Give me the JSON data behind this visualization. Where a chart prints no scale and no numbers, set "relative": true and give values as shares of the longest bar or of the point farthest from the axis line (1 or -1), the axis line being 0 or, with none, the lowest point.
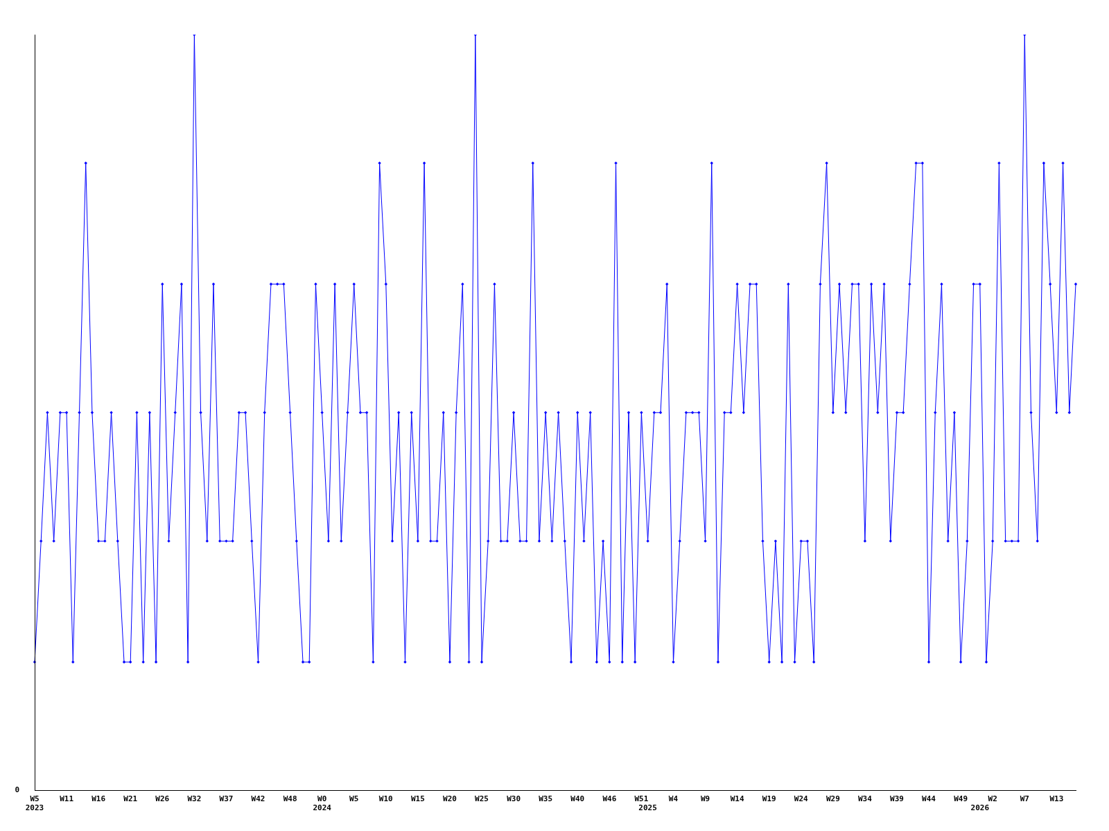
{
  "chart_data": {
    "type": "line",
    "relative": true,
    "categories": [
      "W5\n2023",
      null,
      null,
      null,
      null,
      "W11",
      null,
      null,
      null,
      null,
      "W16",
      null,
      null,
      null,
      null,
      "W21",
      null,
      null,
      null,
      null,
      "W26",
      null,
      null,
      null,
      null,
      "W32",
      null,
      null,
      null,
      null,
      "W37",
      null,
      null,
      null,
      null,
      "W42",
      null,
      null,
      null,
      null,
      "W48",
      null,
      null,
      null,
      null,
      "W0\n2024",
      null,
      null,
      null,
      null,
      "W5",
      null,
      null,
      null,
      null,
      "W10",
      null,
      null,
      null,
      null,
      "W15",
      null,
      null,
      null,
      null,
      "W20",
      null,
      null,
      null,
      null,
      "W25",
      null,
      null,
      null,
      null,
      "W30",
      null,
      null,
      null,
      null,
      "W35",
      null,
      null,
      null,
      null,
      "W40",
      null,
      null,
      null,
      null,
      "W46",
      null,
      null,
      null,
      null,
      "W51",
      "\n2025",
      null,
      null,
      null,
      "W4",
      null,
      null,
      null,
      null,
      "W9",
      null,
      null,
      null,
      null,
      "W14",
      null,
      null,
      null,
      null,
      "W19",
      null,
      null,
      null,
      null,
      "W24",
      null,
      null,
      null,
      null,
      "W29",
      null,
      null,
      null,
      null,
      "W34",
      null,
      null,
      null,
      null,
      "W39",
      null,
      null,
      null,
      null,
      "W44",
      null,
      null,
      null,
      null,
      "W49",
      null,
      null,
      "\n2026",
      null,
      "W2",
      null,
      null,
      null,
      null,
      "W7",
      null,
      null,
      null,
      null,
      "W13",
      null,
      null,
      null
    ],
    "series": [
      {
        "color": "#0000ff",
        "values": [
          0.17,
          0.33,
          0.5,
          0.33,
          0.5,
          0.5,
          0.17,
          0.5,
          0.83,
          0.5,
          0.33,
          0.33,
          0.5,
          0.33,
          0.17,
          0.17,
          0.5,
          0.17,
          0.5,
          0.17,
          0.67,
          0.33,
          0.5,
          0.67,
          0.17,
          1,
          0.5,
          0.33,
          0.67,
          0.33,
          0.33,
          0.33,
          0.5,
          0.5,
          0.33,
          0.17,
          0.5,
          0.67,
          0.67,
          0.67,
          0.5,
          0.33,
          0.17,
          0.17,
          0.67,
          0.5,
          0.33,
          0.67,
          0.33,
          0.5,
          0.67,
          0.5,
          0.5,
          0.17,
          0.83,
          0.67,
          0.33,
          0.5,
          0.17,
          0.5,
          0.33,
          0.83,
          0.33,
          0.33,
          0.5,
          0.17,
          0.5,
          0.67,
          0.17,
          1,
          0.17,
          0.33,
          0.67,
          0.33,
          0.33,
          0.5,
          0.33,
          0.33,
          0.83,
          0.33,
          0.5,
          0.33,
          0.5,
          0.33,
          0.17,
          0.5,
          0.33,
          0.5,
          0.17,
          0.33,
          0.17,
          0.83,
          0.17,
          0.5,
          0.17,
          0.5,
          0.33,
          0.5,
          0.5,
          0.67,
          0.17,
          0.33,
          0.5,
          0.5,
          0.5,
          0.33,
          0.83,
          0.17,
          0.5,
          0.5,
          0.67,
          0.5,
          0.67,
          0.67,
          0.33,
          0.17,
          0.33,
          0.17,
          0.67,
          0.17,
          0.33,
          0.33,
          0.17,
          0.67,
          0.83,
          0.5,
          0.67,
          0.5,
          0.67,
          0.67,
          0.33,
          0.67,
          0.5,
          0.67,
          0.33,
          0.5,
          0.5,
          0.67,
          0.83,
          0.83,
          0.17,
          0.5,
          0.67,
          0.33,
          0.5,
          0.17,
          0.33,
          0.67,
          0.67,
          0.17,
          0.33,
          0.83,
          0.33,
          0.33,
          0.33,
          1,
          0.5,
          0.33,
          0.83,
          0.67,
          0.5,
          0.83,
          0.5,
          0.67
        ]
      }
    ],
    "marker": "diamond",
    "line_style": "solid",
    "annotations": [
      "0"
    ]
  }
}
